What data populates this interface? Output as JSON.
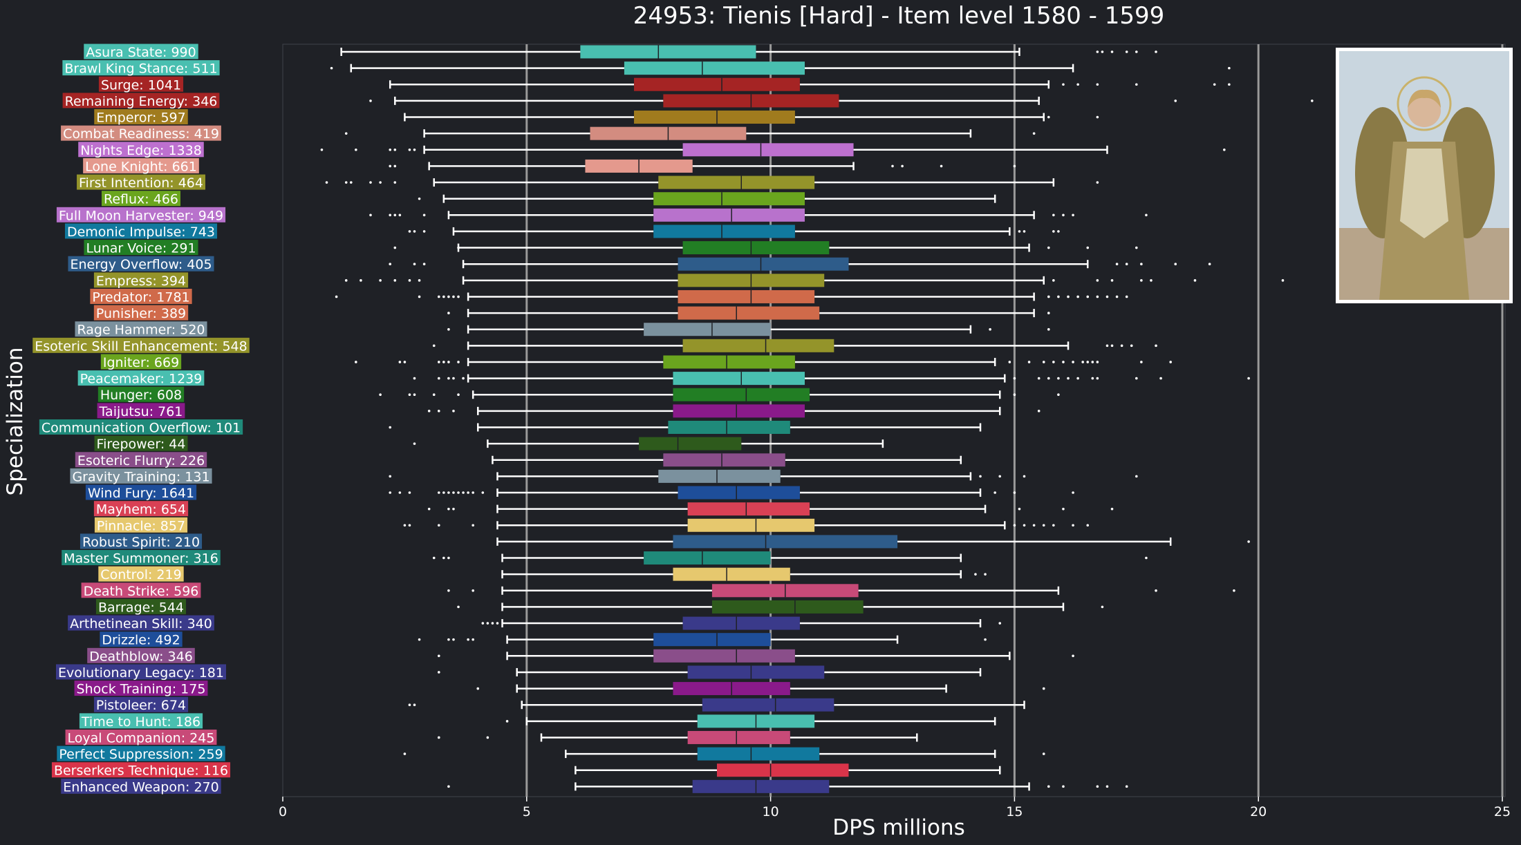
{
  "chart_data": {
    "type": "boxplot",
    "title": "24953: Tienis [Hard] - Item level 1580 - 1599",
    "xlabel": "DPS millions",
    "ylabel": "Specialization",
    "xlim": [
      0,
      25.2
    ],
    "xticks": [
      0,
      5,
      10,
      15,
      20,
      25
    ],
    "grid": "vertical lines at major ticks",
    "legend": "none",
    "colors": {
      "background": "#1f2126",
      "text": "#ffffff",
      "grid": "#9a9a9a",
      "whisker": "#ffffff",
      "median": "#1f2126"
    },
    "series": [
      {
        "label": "Asura State: 990",
        "color": "#49bfb0",
        "min": 1.2,
        "q1": 6.1,
        "median": 7.7,
        "q3": 9.7,
        "max": 15.1,
        "outliers": [
          16.7,
          16.8,
          17.0,
          17.3,
          17.5,
          17.9
        ]
      },
      {
        "label": "Brawl King Stance: 511",
        "color": "#49bfb0",
        "min": 1.4,
        "q1": 7.0,
        "median": 8.6,
        "q3": 10.7,
        "max": 16.2,
        "outliers": [
          1.0,
          19.4
        ]
      },
      {
        "label": "Surge: 1041",
        "color": "#a52424",
        "min": 2.2,
        "q1": 7.2,
        "median": 9.0,
        "q3": 10.6,
        "max": 15.7,
        "outliers": [
          16.0,
          16.3,
          16.7,
          17.5,
          19.1,
          19.4
        ]
      },
      {
        "label": "Remaining Energy: 346",
        "color": "#a52424",
        "min": 2.3,
        "q1": 7.8,
        "median": 9.6,
        "q3": 11.4,
        "max": 15.5,
        "outliers": [
          1.8,
          18.3,
          21.1
        ]
      },
      {
        "label": "Emperor: 597",
        "color": "#a07b1e",
        "min": 2.5,
        "q1": 7.2,
        "median": 8.9,
        "q3": 10.5,
        "max": 15.6,
        "outliers": [
          15.7,
          16.7
        ]
      },
      {
        "label": "Combat Readiness: 419",
        "color": "#d38c80",
        "min": 2.9,
        "q1": 6.3,
        "median": 7.9,
        "q3": 9.5,
        "max": 14.1,
        "outliers": [
          1.3,
          15.4
        ]
      },
      {
        "label": "Nights Edge: 1338",
        "color": "#bd70cf",
        "min": 2.9,
        "q1": 8.2,
        "median": 9.8,
        "q3": 11.7,
        "max": 16.9,
        "outliers": [
          0.8,
          1.5,
          2.2,
          2.3,
          2.6,
          2.7,
          19.3
        ]
      },
      {
        "label": "Lone Knight: 661",
        "color": "#e4998d",
        "min": 3.0,
        "q1": 6.2,
        "median": 7.3,
        "q3": 8.4,
        "max": 11.7,
        "outliers": [
          2.2,
          2.3,
          12.5,
          12.7,
          13.5,
          15.0
        ]
      },
      {
        "label": "First Intention: 464",
        "color": "#94942a",
        "min": 3.1,
        "q1": 7.7,
        "median": 9.4,
        "q3": 10.9,
        "max": 15.8,
        "outliers": [
          0.9,
          1.3,
          1.4,
          1.8,
          2.0,
          2.3,
          16.7
        ]
      },
      {
        "label": "Reflux: 466",
        "color": "#6aa51e",
        "min": 3.3,
        "q1": 7.6,
        "median": 9.0,
        "q3": 10.7,
        "max": 14.6,
        "outliers": [
          2.8
        ]
      },
      {
        "label": "Full Moon Harvester: 949",
        "color": "#b872cc",
        "min": 3.4,
        "q1": 7.6,
        "median": 9.2,
        "q3": 10.7,
        "max": 15.4,
        "outliers": [
          1.8,
          2.2,
          2.3,
          2.4,
          2.9,
          15.8,
          16.0,
          16.2,
          17.7
        ]
      },
      {
        "label": "Demonic Impulse: 743",
        "color": "#11799e",
        "min": 3.5,
        "q1": 7.6,
        "median": 9.0,
        "q3": 10.5,
        "max": 14.9,
        "outliers": [
          2.6,
          2.7,
          2.9,
          15.1,
          15.2,
          15.8,
          15.9
        ]
      },
      {
        "label": "Lunar Voice: 291",
        "color": "#227e24",
        "min": 3.6,
        "q1": 8.2,
        "median": 9.6,
        "q3": 11.2,
        "max": 15.3,
        "outliers": [
          2.3,
          3.6,
          15.7,
          16.5,
          17.5
        ]
      },
      {
        "label": "Energy Overflow: 405",
        "color": "#2e5c8a",
        "min": 3.7,
        "q1": 8.1,
        "median": 9.8,
        "q3": 11.6,
        "max": 16.5,
        "outliers": [
          2.2,
          2.7,
          2.9,
          17.1,
          17.3,
          17.6,
          18.3,
          19.0
        ]
      },
      {
        "label": "Empress: 394",
        "color": "#94942a",
        "min": 3.7,
        "q1": 8.1,
        "median": 9.6,
        "q3": 11.1,
        "max": 15.6,
        "outliers": [
          1.3,
          1.6,
          2.0,
          2.3,
          2.6,
          2.8,
          15.8,
          16.7,
          17.0,
          17.6,
          17.8,
          18.7,
          20.5
        ]
      },
      {
        "label": "Predator: 1781",
        "color": "#d06a4a",
        "min": 3.8,
        "q1": 8.1,
        "median": 9.6,
        "q3": 10.9,
        "max": 15.4,
        "outliers": [
          1.1,
          2.8,
          3.2,
          3.3,
          3.4,
          3.5,
          3.6,
          15.7,
          15.9,
          16.1,
          16.3,
          16.5,
          16.7,
          16.9,
          17.1,
          17.3
        ]
      },
      {
        "label": "Punisher: 389",
        "color": "#d06a4a",
        "min": 3.8,
        "q1": 8.1,
        "median": 9.3,
        "q3": 11.0,
        "max": 15.4,
        "outliers": [
          3.4,
          15.7
        ]
      },
      {
        "label": "Rage Hammer: 520",
        "color": "#7b919e",
        "min": 3.8,
        "q1": 7.4,
        "median": 8.8,
        "q3": 10.0,
        "max": 14.1,
        "outliers": [
          3.4,
          14.5,
          15.7
        ]
      },
      {
        "label": "Esoteric Skill Enhancement: 548",
        "color": "#94942a",
        "min": 3.8,
        "q1": 8.2,
        "median": 9.9,
        "q3": 11.3,
        "max": 16.1,
        "outliers": [
          3.1,
          16.9,
          17.0,
          17.2,
          17.4,
          17.9
        ]
      },
      {
        "label": "Igniter: 669",
        "color": "#6aa51e",
        "min": 3.8,
        "q1": 7.8,
        "median": 9.1,
        "q3": 10.5,
        "max": 14.6,
        "outliers": [
          1.5,
          2.4,
          2.5,
          3.2,
          3.3,
          3.4,
          3.6,
          14.9,
          15.3,
          15.6,
          15.8,
          16.0,
          16.2,
          16.4,
          16.5,
          16.6,
          16.7,
          17.6,
          18.2
        ]
      },
      {
        "label": "Peacemaker: 1239",
        "color": "#49bfb0",
        "min": 3.8,
        "q1": 8.0,
        "median": 9.4,
        "q3": 10.7,
        "max": 14.8,
        "outliers": [
          2.7,
          3.2,
          3.4,
          3.5,
          3.7,
          15.0,
          15.5,
          15.7,
          15.9,
          16.1,
          16.3,
          16.6,
          16.7,
          17.5,
          18.0,
          19.8
        ]
      },
      {
        "label": "Hunger: 608",
        "color": "#227e24",
        "min": 3.9,
        "q1": 8.0,
        "median": 9.5,
        "q3": 10.8,
        "max": 14.7,
        "outliers": [
          2.0,
          2.6,
          2.7,
          3.1,
          3.6,
          15.0,
          15.9
        ]
      },
      {
        "label": "Taijutsu: 761",
        "color": "#8a1a8a",
        "min": 4.0,
        "q1": 8.0,
        "median": 9.3,
        "q3": 10.7,
        "max": 14.7,
        "outliers": [
          3.0,
          3.2,
          3.5,
          15.5
        ]
      },
      {
        "label": "Communication Overflow: 101",
        "color": "#1f8a7a",
        "min": 4.0,
        "q1": 7.9,
        "median": 9.1,
        "q3": 10.4,
        "max": 14.3,
        "outliers": [
          2.2
        ]
      },
      {
        "label": "Firepower: 44",
        "color": "#2e5a1c",
        "min": 4.2,
        "q1": 7.3,
        "median": 8.1,
        "q3": 9.4,
        "max": 12.3,
        "outliers": [
          2.7
        ]
      },
      {
        "label": "Esoteric Flurry: 226",
        "color": "#8a4e8a",
        "min": 4.3,
        "q1": 7.8,
        "median": 9.0,
        "q3": 10.3,
        "max": 13.9,
        "outliers": []
      },
      {
        "label": "Gravity Training: 131",
        "color": "#7b919e",
        "min": 4.4,
        "q1": 7.7,
        "median": 8.9,
        "q3": 10.2,
        "max": 14.1,
        "outliers": [
          2.2,
          14.3,
          14.7,
          15.2,
          17.5
        ]
      },
      {
        "label": "Wind Fury: 1641",
        "color": "#1e4e9a",
        "min": 4.4,
        "q1": 8.1,
        "median": 9.3,
        "q3": 10.6,
        "max": 14.3,
        "outliers": [
          2.2,
          2.4,
          2.6,
          3.2,
          3.3,
          3.4,
          3.5,
          3.6,
          3.7,
          3.8,
          3.9,
          4.1,
          14.6,
          15.0,
          16.2
        ]
      },
      {
        "label": "Mayhem: 654",
        "color": "#d94155",
        "min": 4.4,
        "q1": 8.3,
        "median": 9.5,
        "q3": 10.8,
        "max": 14.4,
        "outliers": [
          3.0,
          3.4,
          3.5,
          15.1,
          16.0,
          17.0
        ]
      },
      {
        "label": "Pinnacle: 857",
        "color": "#e6c86e",
        "min": 4.4,
        "q1": 8.3,
        "median": 9.7,
        "q3": 10.9,
        "max": 14.8,
        "outliers": [
          2.5,
          2.6,
          3.2,
          3.9,
          15.0,
          15.2,
          15.4,
          15.6,
          15.8,
          16.2,
          16.5
        ]
      },
      {
        "label": "Robust Spirit: 210",
        "color": "#2e5c8a",
        "min": 4.4,
        "q1": 8.0,
        "median": 9.9,
        "q3": 12.6,
        "max": 18.2,
        "outliers": [
          19.8
        ]
      },
      {
        "label": "Master Summoner: 316",
        "color": "#1f8a7a",
        "min": 4.5,
        "q1": 7.4,
        "median": 8.6,
        "q3": 10.0,
        "max": 13.9,
        "outliers": [
          3.1,
          3.3,
          3.4,
          17.7
        ]
      },
      {
        "label": "Control: 219",
        "color": "#e6c86e",
        "min": 4.5,
        "q1": 8.0,
        "median": 9.1,
        "q3": 10.4,
        "max": 13.9,
        "outliers": [
          14.2,
          14.4
        ]
      },
      {
        "label": "Death Strike: 596",
        "color": "#c84a78",
        "min": 4.5,
        "q1": 8.8,
        "median": 10.3,
        "q3": 11.8,
        "max": 15.9,
        "outliers": [
          3.4,
          3.9,
          17.9,
          19.5
        ]
      },
      {
        "label": "Barrage: 544",
        "color": "#2e5a1c",
        "min": 4.5,
        "q1": 8.8,
        "median": 10.5,
        "q3": 11.9,
        "max": 16.0,
        "outliers": [
          3.6,
          16.8
        ]
      },
      {
        "label": "Arthetinean Skill: 340",
        "color": "#3a3a8a",
        "min": 4.5,
        "q1": 8.2,
        "median": 9.3,
        "q3": 10.6,
        "max": 14.3,
        "outliers": [
          4.1,
          4.2,
          4.3,
          4.4,
          14.7
        ]
      },
      {
        "label": "Drizzle: 492",
        "color": "#1e4e9a",
        "min": 4.6,
        "q1": 7.6,
        "median": 8.9,
        "q3": 10.0,
        "max": 12.6,
        "outliers": [
          2.8,
          3.4,
          3.5,
          3.8,
          3.9,
          14.4
        ]
      },
      {
        "label": "Deathblow: 346",
        "color": "#8a4e8a",
        "min": 4.6,
        "q1": 7.6,
        "median": 9.3,
        "q3": 10.5,
        "max": 14.9,
        "outliers": [
          3.2,
          16.2
        ]
      },
      {
        "label": "Evolutionary Legacy: 181",
        "color": "#3a3a8a",
        "min": 4.8,
        "q1": 8.3,
        "median": 9.6,
        "q3": 11.1,
        "max": 14.3,
        "outliers": [
          3.2
        ]
      },
      {
        "label": "Shock Training: 175",
        "color": "#8a1a8a",
        "min": 4.8,
        "q1": 8.0,
        "median": 9.2,
        "q3": 10.4,
        "max": 13.6,
        "outliers": [
          4.0,
          15.6
        ]
      },
      {
        "label": "Pistoleer: 674",
        "color": "#3a3a8a",
        "min": 4.9,
        "q1": 8.6,
        "median": 10.1,
        "q3": 11.3,
        "max": 15.2,
        "outliers": [
          2.6,
          2.7
        ]
      },
      {
        "label": "Time to Hunt: 186",
        "color": "#49bfb0",
        "min": 5.0,
        "q1": 8.5,
        "median": 9.7,
        "q3": 10.9,
        "max": 14.6,
        "outliers": [
          4.6
        ]
      },
      {
        "label": "Loyal Companion: 245",
        "color": "#c84a78",
        "min": 5.3,
        "q1": 8.3,
        "median": 9.3,
        "q3": 10.4,
        "max": 13.0,
        "outliers": [
          3.2,
          4.2
        ]
      },
      {
        "label": "Perfect Suppression: 259",
        "color": "#11799e",
        "min": 5.8,
        "q1": 8.5,
        "median": 9.6,
        "q3": 11.0,
        "max": 14.6,
        "outliers": [
          2.5,
          15.6
        ]
      },
      {
        "label": "Berserkers Technique: 116",
        "color": "#d9344a",
        "min": 6.0,
        "q1": 8.9,
        "median": 10.0,
        "q3": 11.6,
        "max": 14.7,
        "outliers": []
      },
      {
        "label": "Enhanced Weapon: 270",
        "color": "#3a3a8a",
        "min": 6.0,
        "q1": 8.4,
        "median": 9.7,
        "q3": 11.2,
        "max": 15.3,
        "outliers": [
          3.4,
          15.7,
          16.0,
          16.7,
          16.9,
          17.3
        ]
      }
    ]
  },
  "portrait": {
    "name": "character-portrait"
  }
}
